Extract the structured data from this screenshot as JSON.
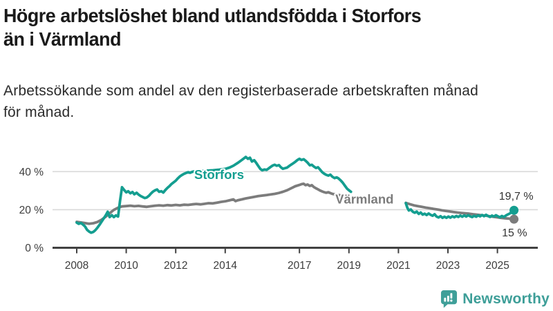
{
  "header": {
    "title_lines": [
      "Högre arbetslöshet bland utlandsfödda i Storfors",
      "än i Värmland"
    ],
    "subtitle_lines": [
      "Arbetssökande som andel av den registerbaserade arbetskraften månad",
      "för månad."
    ]
  },
  "logo": {
    "text": "Newsworthy",
    "icon": "newsworthy-speech-bubble-bar-chart-icon",
    "color": "#3d9e98"
  },
  "colors": {
    "storfors": "#149e90",
    "varmland": "#7c7c7c",
    "axis": "#414141",
    "grid": "#d9d9d9",
    "end_label_text": "#333333"
  },
  "chart_data": {
    "type": "line",
    "title": "Högre arbetslöshet bland utlandsfödda i Storfors än i Värmland",
    "subtitle": "Arbetssökande som andel av den registerbaserade arbetskraften månad för månad.",
    "xlabel": "",
    "ylabel": "",
    "xlim": [
      2007.5,
      2026.4
    ],
    "ylim": [
      0,
      50
    ],
    "grid": true,
    "legend": "inline-labels",
    "x_ticks": [
      2008,
      2010,
      2012,
      2014,
      2017,
      2019,
      2021,
      2023,
      2025
    ],
    "y_ticks": [
      {
        "value": 0,
        "label": "0 %"
      },
      {
        "value": 20,
        "label": "20 %"
      },
      {
        "value": 40,
        "label": "40 %"
      }
    ],
    "data_gap_years": [
      2019.1,
      2021.3
    ],
    "series": [
      {
        "id": "storfors",
        "name": "Storfors",
        "color": "#149e90",
        "end_value": 19.7,
        "end_label": "19,7 %",
        "end_label_side": "above",
        "inline_label": {
          "x": 2012.75,
          "y": 36.2
        },
        "points_pre_gap": [
          [
            2008.0,
            13.2
          ],
          [
            2008.08,
            12.6
          ],
          [
            2008.17,
            13.0
          ],
          [
            2008.25,
            12.2
          ],
          [
            2008.33,
            11.3
          ],
          [
            2008.42,
            9.4
          ],
          [
            2008.5,
            8.5
          ],
          [
            2008.58,
            7.9
          ],
          [
            2008.67,
            8.3
          ],
          [
            2008.75,
            9.2
          ],
          [
            2008.83,
            10.4
          ],
          [
            2008.92,
            12.0
          ],
          [
            2009.0,
            13.6
          ],
          [
            2009.08,
            15.2
          ],
          [
            2009.17,
            17.0
          ],
          [
            2009.25,
            18.9
          ],
          [
            2009.33,
            16.1
          ],
          [
            2009.42,
            17.1
          ],
          [
            2009.5,
            16.1
          ],
          [
            2009.58,
            17.0
          ],
          [
            2009.67,
            16.4
          ],
          [
            2009.75,
            24.5
          ],
          [
            2009.83,
            31.8
          ],
          [
            2009.92,
            30.3
          ],
          [
            2010.0,
            29.1
          ],
          [
            2010.08,
            29.7
          ],
          [
            2010.17,
            28.6
          ],
          [
            2010.25,
            29.3
          ],
          [
            2010.33,
            28.1
          ],
          [
            2010.42,
            28.9
          ],
          [
            2010.5,
            27.9
          ],
          [
            2010.58,
            27.2
          ],
          [
            2010.67,
            26.6
          ],
          [
            2010.75,
            26.1
          ],
          [
            2010.83,
            26.4
          ],
          [
            2010.92,
            27.3
          ],
          [
            2011.0,
            28.5
          ],
          [
            2011.08,
            29.5
          ],
          [
            2011.17,
            30.2
          ],
          [
            2011.25,
            30.6
          ],
          [
            2011.33,
            29.4
          ],
          [
            2011.42,
            29.7
          ],
          [
            2011.5,
            29.0
          ],
          [
            2011.58,
            30.3
          ],
          [
            2011.67,
            31.5
          ],
          [
            2011.75,
            32.4
          ],
          [
            2011.83,
            33.5
          ],
          [
            2011.92,
            34.4
          ],
          [
            2012.0,
            35.2
          ],
          [
            2012.08,
            36.4
          ],
          [
            2012.17,
            37.5
          ],
          [
            2012.25,
            38.2
          ],
          [
            2012.33,
            38.8
          ],
          [
            2012.42,
            39.3
          ],
          [
            2012.5,
            39.7
          ],
          [
            2012.58,
            39.4
          ],
          [
            2012.67,
            39.9
          ],
          [
            2012.75,
            40.1
          ],
          [
            2012.83,
            39.8
          ],
          [
            2012.92,
            40.1
          ],
          [
            2013.0,
            40.2
          ],
          [
            2013.25,
            40.5
          ],
          [
            2013.5,
            40.7
          ],
          [
            2013.75,
            41.0
          ],
          [
            2014.0,
            41.4
          ],
          [
            2014.17,
            42.1
          ],
          [
            2014.33,
            43.1
          ],
          [
            2014.5,
            44.5
          ],
          [
            2014.67,
            46.1
          ],
          [
            2014.83,
            47.7
          ],
          [
            2014.92,
            46.7
          ],
          [
            2015.0,
            47.3
          ],
          [
            2015.08,
            45.3
          ],
          [
            2015.17,
            46.0
          ],
          [
            2015.25,
            44.7
          ],
          [
            2015.33,
            43.1
          ],
          [
            2015.42,
            41.4
          ],
          [
            2015.5,
            40.7
          ],
          [
            2015.58,
            41.1
          ],
          [
            2015.67,
            40.9
          ],
          [
            2015.75,
            41.6
          ],
          [
            2015.83,
            42.4
          ],
          [
            2015.92,
            43.2
          ],
          [
            2016.0,
            43.6
          ],
          [
            2016.08,
            43.1
          ],
          [
            2016.17,
            43.4
          ],
          [
            2016.25,
            42.3
          ],
          [
            2016.33,
            41.5
          ],
          [
            2016.42,
            41.8
          ],
          [
            2016.5,
            42.1
          ],
          [
            2016.58,
            42.9
          ],
          [
            2016.67,
            43.7
          ],
          [
            2016.75,
            44.4
          ],
          [
            2016.83,
            45.1
          ],
          [
            2016.92,
            46.1
          ],
          [
            2017.0,
            46.7
          ],
          [
            2017.08,
            46.1
          ],
          [
            2017.17,
            46.5
          ],
          [
            2017.25,
            45.7
          ],
          [
            2017.33,
            44.7
          ],
          [
            2017.42,
            43.3
          ],
          [
            2017.5,
            43.6
          ],
          [
            2017.58,
            42.7
          ],
          [
            2017.67,
            41.9
          ],
          [
            2017.75,
            42.3
          ],
          [
            2017.83,
            41.1
          ],
          [
            2017.92,
            39.7
          ],
          [
            2018.0,
            38.9
          ],
          [
            2018.08,
            38.3
          ],
          [
            2018.17,
            37.9
          ],
          [
            2018.25,
            38.4
          ],
          [
            2018.33,
            37.3
          ],
          [
            2018.42,
            36.6
          ],
          [
            2018.5,
            37.0
          ],
          [
            2018.58,
            36.4
          ],
          [
            2018.67,
            35.3
          ],
          [
            2018.75,
            34.2
          ],
          [
            2018.83,
            32.7
          ],
          [
            2018.92,
            31.1
          ],
          [
            2019.0,
            30.2
          ],
          [
            2019.08,
            29.4
          ]
        ],
        "points_post_gap": [
          [
            2021.3,
            23.4
          ],
          [
            2021.36,
            21.0
          ],
          [
            2021.42,
            19.6
          ],
          [
            2021.5,
            20.1
          ],
          [
            2021.58,
            18.9
          ],
          [
            2021.66,
            18.4
          ],
          [
            2021.74,
            19.0
          ],
          [
            2021.82,
            17.8
          ],
          [
            2021.9,
            18.5
          ],
          [
            2021.98,
            17.4
          ],
          [
            2022.06,
            17.9
          ],
          [
            2022.14,
            17.2
          ],
          [
            2022.22,
            18.0
          ],
          [
            2022.3,
            17.3
          ],
          [
            2022.38,
            16.8
          ],
          [
            2022.46,
            17.6
          ],
          [
            2022.54,
            16.4
          ],
          [
            2022.62,
            15.9
          ],
          [
            2022.7,
            16.6
          ],
          [
            2022.78,
            15.7
          ],
          [
            2022.86,
            16.3
          ],
          [
            2022.94,
            15.7
          ],
          [
            2023.02,
            16.4
          ],
          [
            2023.1,
            15.8
          ],
          [
            2023.18,
            16.5
          ],
          [
            2023.26,
            16.0
          ],
          [
            2023.34,
            16.7
          ],
          [
            2023.42,
            16.2
          ],
          [
            2023.5,
            16.9
          ],
          [
            2023.58,
            16.3
          ],
          [
            2023.66,
            17.0
          ],
          [
            2023.74,
            16.4
          ],
          [
            2023.82,
            17.1
          ],
          [
            2023.9,
            16.5
          ],
          [
            2023.98,
            16.1
          ],
          [
            2024.06,
            16.8
          ],
          [
            2024.14,
            16.3
          ],
          [
            2024.22,
            17.0
          ],
          [
            2024.3,
            16.5
          ],
          [
            2024.38,
            17.2
          ],
          [
            2024.46,
            16.6
          ],
          [
            2024.54,
            17.3
          ],
          [
            2024.62,
            16.7
          ],
          [
            2024.7,
            16.2
          ],
          [
            2024.78,
            16.9
          ],
          [
            2024.86,
            16.4
          ],
          [
            2024.94,
            17.1
          ],
          [
            2025.02,
            16.5
          ],
          [
            2025.1,
            16.0
          ],
          [
            2025.18,
            16.7
          ],
          [
            2025.26,
            16.2
          ],
          [
            2025.34,
            16.9
          ],
          [
            2025.42,
            17.5
          ],
          [
            2025.5,
            18.0
          ],
          [
            2025.58,
            18.8
          ],
          [
            2025.67,
            19.7
          ]
        ]
      },
      {
        "id": "varmland",
        "name": "Värmland",
        "color": "#7c7c7c",
        "end_value": 15,
        "end_label": "15 %",
        "end_label_side": "below",
        "inline_label": {
          "x": 2018.45,
          "y": 23.2
        },
        "points_pre_gap": [
          [
            2008.0,
            13.6
          ],
          [
            2008.17,
            13.3
          ],
          [
            2008.33,
            13.0
          ],
          [
            2008.5,
            12.6
          ],
          [
            2008.67,
            12.9
          ],
          [
            2008.83,
            13.5
          ],
          [
            2009.0,
            14.7
          ],
          [
            2009.17,
            16.3
          ],
          [
            2009.33,
            18.1
          ],
          [
            2009.5,
            19.9
          ],
          [
            2009.67,
            21.0
          ],
          [
            2009.83,
            21.7
          ],
          [
            2010.0,
            21.9
          ],
          [
            2010.17,
            22.1
          ],
          [
            2010.33,
            21.8
          ],
          [
            2010.5,
            22.0
          ],
          [
            2010.67,
            21.7
          ],
          [
            2010.83,
            21.5
          ],
          [
            2011.0,
            21.8
          ],
          [
            2011.17,
            22.1
          ],
          [
            2011.33,
            22.3
          ],
          [
            2011.5,
            22.1
          ],
          [
            2011.67,
            22.4
          ],
          [
            2011.83,
            22.2
          ],
          [
            2012.0,
            22.5
          ],
          [
            2012.17,
            22.3
          ],
          [
            2012.33,
            22.6
          ],
          [
            2012.5,
            22.5
          ],
          [
            2012.67,
            22.8
          ],
          [
            2012.83,
            23.0
          ],
          [
            2013.0,
            22.8
          ],
          [
            2013.17,
            23.1
          ],
          [
            2013.33,
            23.4
          ],
          [
            2013.5,
            23.3
          ],
          [
            2013.67,
            23.7
          ],
          [
            2013.83,
            24.1
          ],
          [
            2014.0,
            24.4
          ],
          [
            2014.17,
            24.9
          ],
          [
            2014.33,
            25.4
          ],
          [
            2014.42,
            24.5
          ],
          [
            2014.5,
            24.9
          ],
          [
            2014.67,
            25.4
          ],
          [
            2014.83,
            25.9
          ],
          [
            2015.0,
            26.3
          ],
          [
            2015.17,
            26.7
          ],
          [
            2015.33,
            27.1
          ],
          [
            2015.5,
            27.4
          ],
          [
            2015.67,
            27.7
          ],
          [
            2015.83,
            28.0
          ],
          [
            2016.0,
            28.3
          ],
          [
            2016.17,
            28.8
          ],
          [
            2016.33,
            29.4
          ],
          [
            2016.5,
            30.2
          ],
          [
            2016.67,
            31.3
          ],
          [
            2016.83,
            32.3
          ],
          [
            2017.0,
            33.0
          ],
          [
            2017.08,
            33.4
          ],
          [
            2017.17,
            33.6
          ],
          [
            2017.25,
            32.9
          ],
          [
            2017.33,
            33.2
          ],
          [
            2017.42,
            32.5
          ],
          [
            2017.5,
            32.9
          ],
          [
            2017.58,
            31.9
          ],
          [
            2017.67,
            31.2
          ],
          [
            2017.75,
            30.7
          ],
          [
            2017.83,
            30.1
          ],
          [
            2017.92,
            29.6
          ],
          [
            2018.0,
            29.2
          ],
          [
            2018.08,
            28.9
          ],
          [
            2018.17,
            29.2
          ],
          [
            2018.25,
            28.7
          ],
          [
            2018.33,
            28.3
          ],
          [
            2018.5,
            27.9
          ],
          [
            2018.67,
            27.5
          ],
          [
            2018.83,
            27.1
          ],
          [
            2019.0,
            26.8
          ],
          [
            2019.08,
            26.6
          ]
        ],
        "points_post_gap": [
          [
            2021.3,
            23.6
          ],
          [
            2021.46,
            22.9
          ],
          [
            2021.62,
            22.3
          ],
          [
            2021.78,
            21.9
          ],
          [
            2021.94,
            21.5
          ],
          [
            2022.1,
            21.1
          ],
          [
            2022.26,
            20.8
          ],
          [
            2022.42,
            20.4
          ],
          [
            2022.58,
            20.1
          ],
          [
            2022.74,
            19.7
          ],
          [
            2022.9,
            19.4
          ],
          [
            2023.06,
            19.1
          ],
          [
            2023.22,
            18.8
          ],
          [
            2023.38,
            18.5
          ],
          [
            2023.54,
            18.3
          ],
          [
            2023.7,
            18.1
          ],
          [
            2023.86,
            17.9
          ],
          [
            2024.02,
            17.6
          ],
          [
            2024.18,
            17.4
          ],
          [
            2024.34,
            17.1
          ],
          [
            2024.5,
            16.9
          ],
          [
            2024.66,
            16.6
          ],
          [
            2024.82,
            16.3
          ],
          [
            2024.98,
            16.0
          ],
          [
            2025.14,
            15.7
          ],
          [
            2025.3,
            15.5
          ],
          [
            2025.46,
            15.3
          ],
          [
            2025.67,
            15.0
          ]
        ]
      }
    ]
  }
}
